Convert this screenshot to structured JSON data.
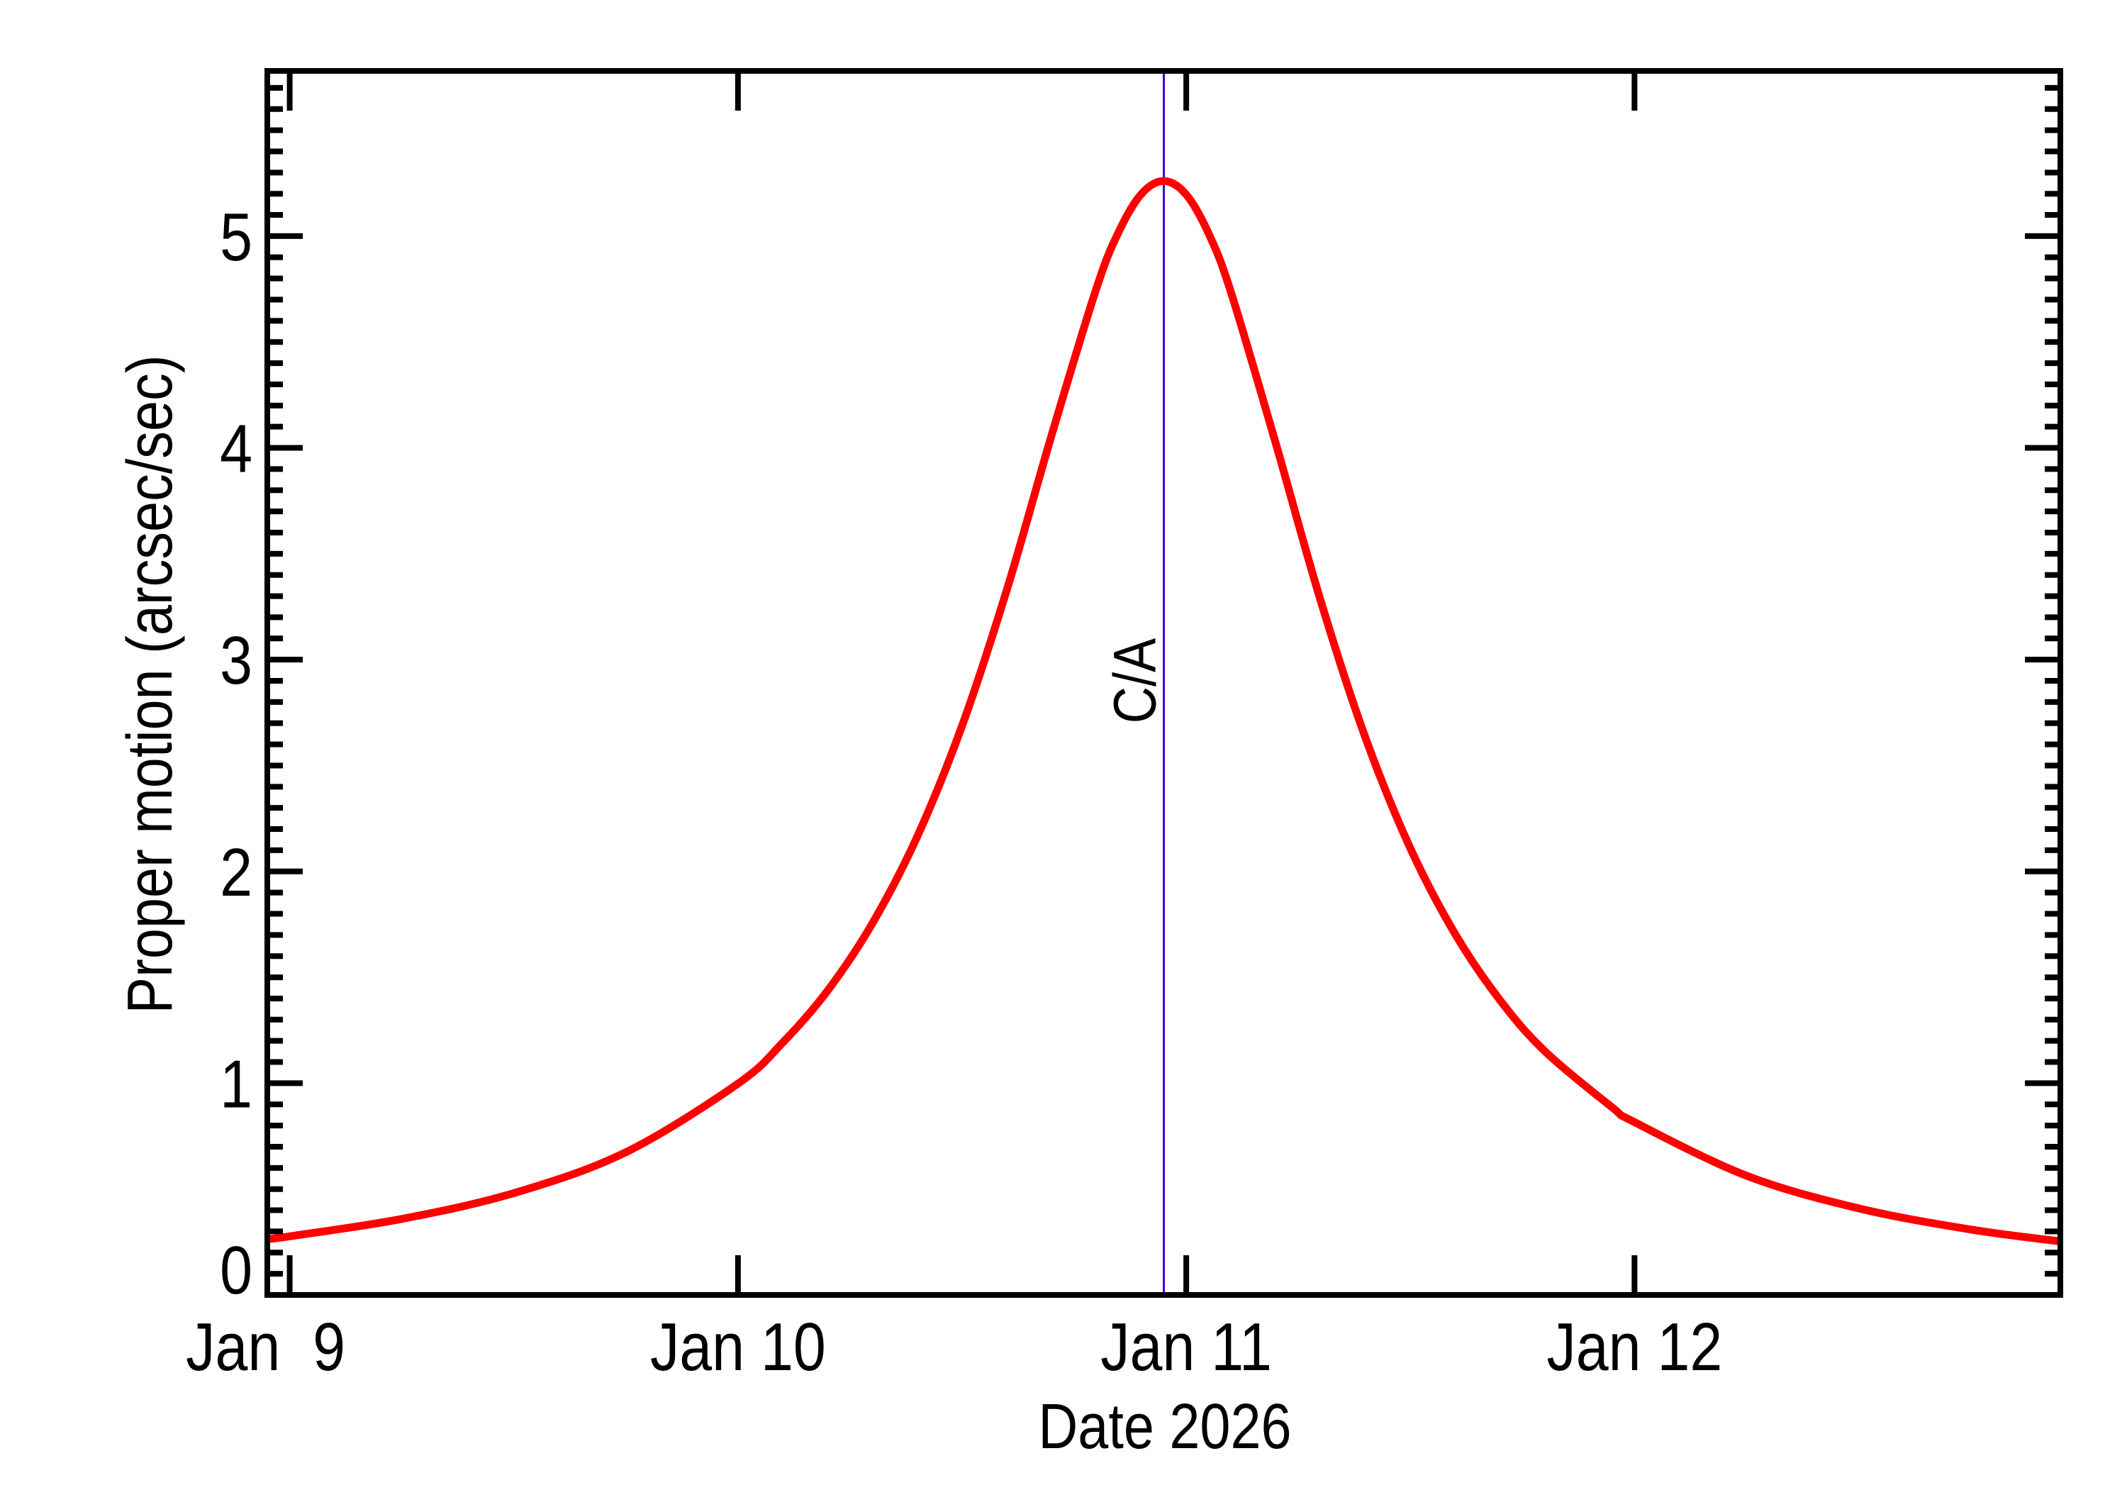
{
  "chart_data": {
    "type": "line",
    "title": "",
    "xlabel": "Date 2026",
    "ylabel": "Proper motion (arcsec/sec)",
    "x_unit": "days since Jan 9 2026 00:00",
    "xlim": [
      -0.05,
      3.95
    ],
    "ylim": [
      0,
      5.78
    ],
    "x_ticks": [
      {
        "value": 0,
        "label": "Jan  9"
      },
      {
        "value": 1,
        "label": "Jan 10"
      },
      {
        "value": 2,
        "label": "Jan 11"
      },
      {
        "value": 3,
        "label": "Jan 12"
      }
    ],
    "y_ticks": [
      {
        "value": 0,
        "label": "0"
      },
      {
        "value": 1,
        "label": "1"
      },
      {
        "value": 2,
        "label": "2"
      },
      {
        "value": 3,
        "label": "3"
      },
      {
        "value": 4,
        "label": "4"
      },
      {
        "value": 5,
        "label": "5"
      }
    ],
    "y_minor_step": 0.1,
    "grid": false,
    "legend": null,
    "series": [
      {
        "name": "Proper motion",
        "color": "#ff0000",
        "x": [
          -0.05,
          0.0,
          0.25,
          0.5,
          0.75,
          1.0,
          1.1,
          1.2,
          1.3,
          1.4,
          1.5,
          1.6,
          1.7,
          1.8,
          1.85,
          1.9,
          1.95,
          2.0,
          2.05,
          2.1,
          2.2,
          2.3,
          2.4,
          2.5,
          2.6,
          2.7,
          2.8,
          2.95,
          3.0,
          3.25,
          3.5,
          3.75,
          3.95
        ],
        "values": [
          0.264,
          0.277,
          0.359,
          0.481,
          0.674,
          0.998,
          1.192,
          1.437,
          1.755,
          2.165,
          2.688,
          3.331,
          4.062,
          4.756,
          5.023,
          5.199,
          5.26,
          5.196,
          5.012,
          4.734,
          4.019,
          3.277,
          2.63,
          2.109,
          1.704,
          1.392,
          1.151,
          0.886,
          0.816,
          0.563,
          0.409,
          0.309,
          0.253
        ]
      }
    ],
    "annotations": [
      {
        "type": "vline",
        "x": 1.95,
        "label": "C/A",
        "color": "#4400cc"
      }
    ],
    "peak": {
      "x": 1.95,
      "value": 5.26
    }
  }
}
